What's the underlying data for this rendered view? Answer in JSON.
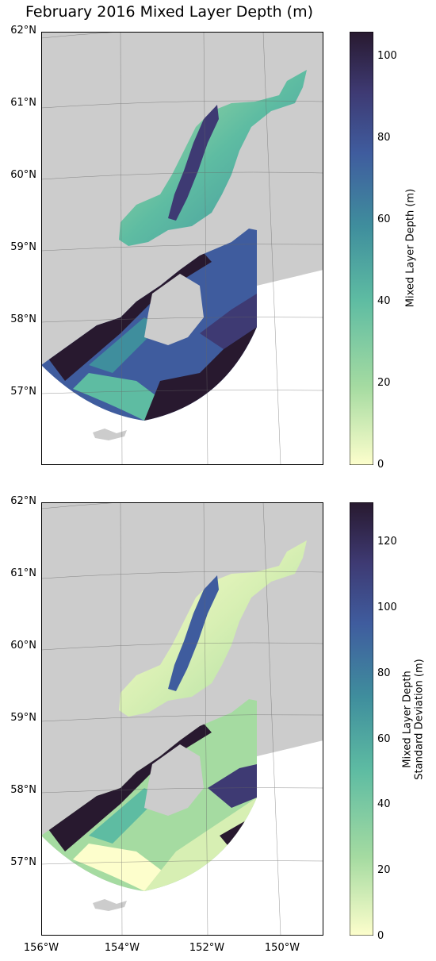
{
  "title": "February 2016 Mixed Layer Depth (m)",
  "colors": {
    "land": "#cccccc",
    "colormap_deep": [
      "#fdfecc",
      "#a5dba1",
      "#5ebca2",
      "#3f8e9d",
      "#3f5c9e",
      "#3e3a73",
      "#28192f"
    ]
  },
  "panels": [
    {
      "name": "mixed-layer-depth",
      "lat_ticks": [
        "62°N",
        "61°N",
        "60°N",
        "59°N",
        "58°N",
        "57°N"
      ],
      "colorbar": {
        "label_lines": [
          "Mixed Layer Depth (m)"
        ],
        "ticks": [
          "0",
          "20",
          "40",
          "60",
          "80",
          "100"
        ],
        "range": [
          0,
          106
        ]
      }
    },
    {
      "name": "mixed-layer-depth-std",
      "lat_ticks": [
        "62°N",
        "61°N",
        "60°N",
        "59°N",
        "58°N",
        "57°N"
      ],
      "colorbar": {
        "label_lines": [
          "Mixed Layer Depth",
          "Standard Deviation (m)"
        ],
        "ticks": [
          "0",
          "20",
          "40",
          "60",
          "80",
          "100",
          "120"
        ],
        "range": [
          0,
          132
        ]
      }
    }
  ],
  "lon_ticks": [
    "156°W",
    "154°W",
    "152°W",
    "150°W"
  ]
}
